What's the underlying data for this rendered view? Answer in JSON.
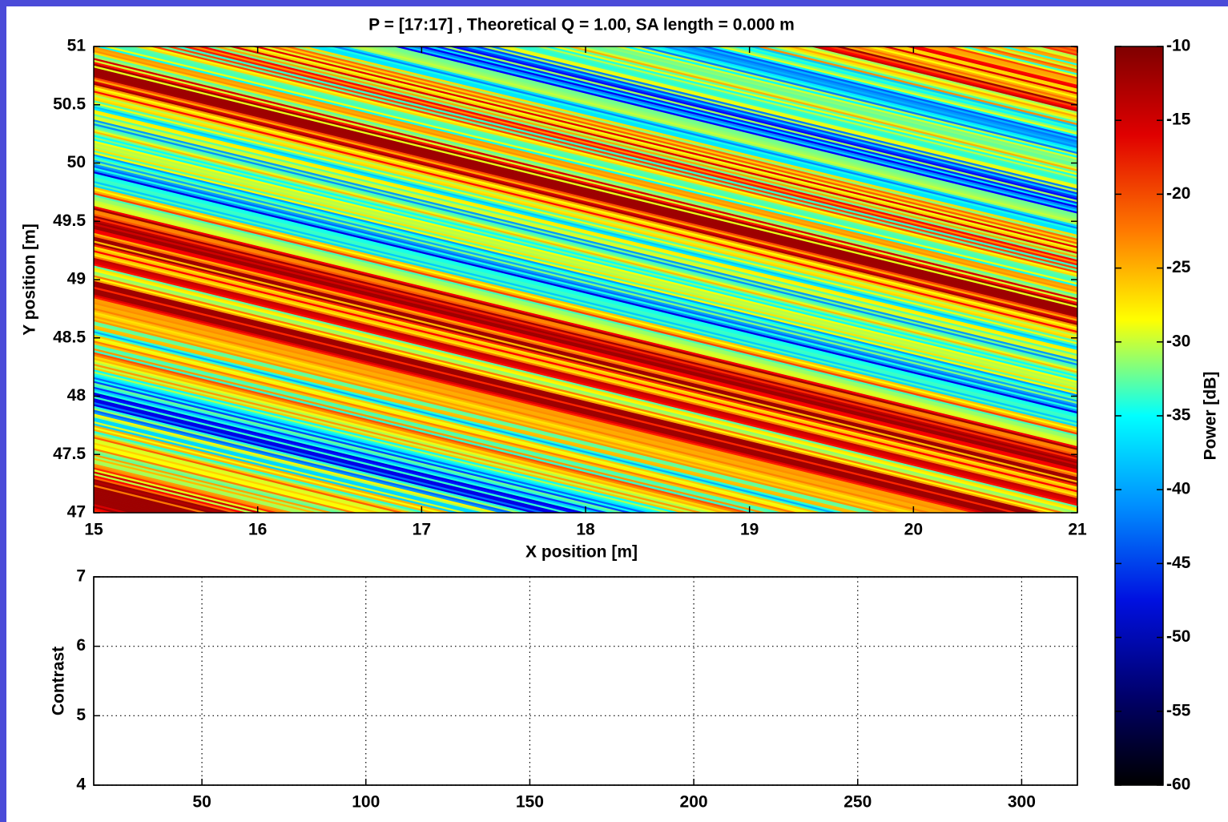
{
  "chart_data": [
    {
      "type": "heatmap",
      "title": "P = [17:17] , Theoretical Q = 1.00, SA length = 0.000 m",
      "xlabel": "X position [m]",
      "ylabel": "Y position [m]",
      "xlim": [
        15,
        21
      ],
      "xticks": [
        15,
        16,
        17,
        18,
        19,
        20,
        21
      ],
      "ylim": [
        47,
        51
      ],
      "yticks": [
        47,
        47.5,
        48,
        48.5,
        49,
        49.5,
        50,
        50.5,
        51
      ],
      "colorbar": {
        "label": "Power [dB]",
        "lim": [
          -60,
          -10
        ],
        "ticks": [
          -10,
          -15,
          -20,
          -25,
          -30,
          -35,
          -40,
          -45,
          -50,
          -55,
          -60
        ]
      }
    },
    {
      "type": "line",
      "ylabel": "Contrast",
      "xlim": [
        17,
        317
      ],
      "xticks": [
        50,
        100,
        150,
        200,
        250,
        300
      ],
      "ylim": [
        4,
        7
      ],
      "yticks": [
        4,
        5,
        6,
        7
      ],
      "grid": true,
      "series": []
    }
  ]
}
